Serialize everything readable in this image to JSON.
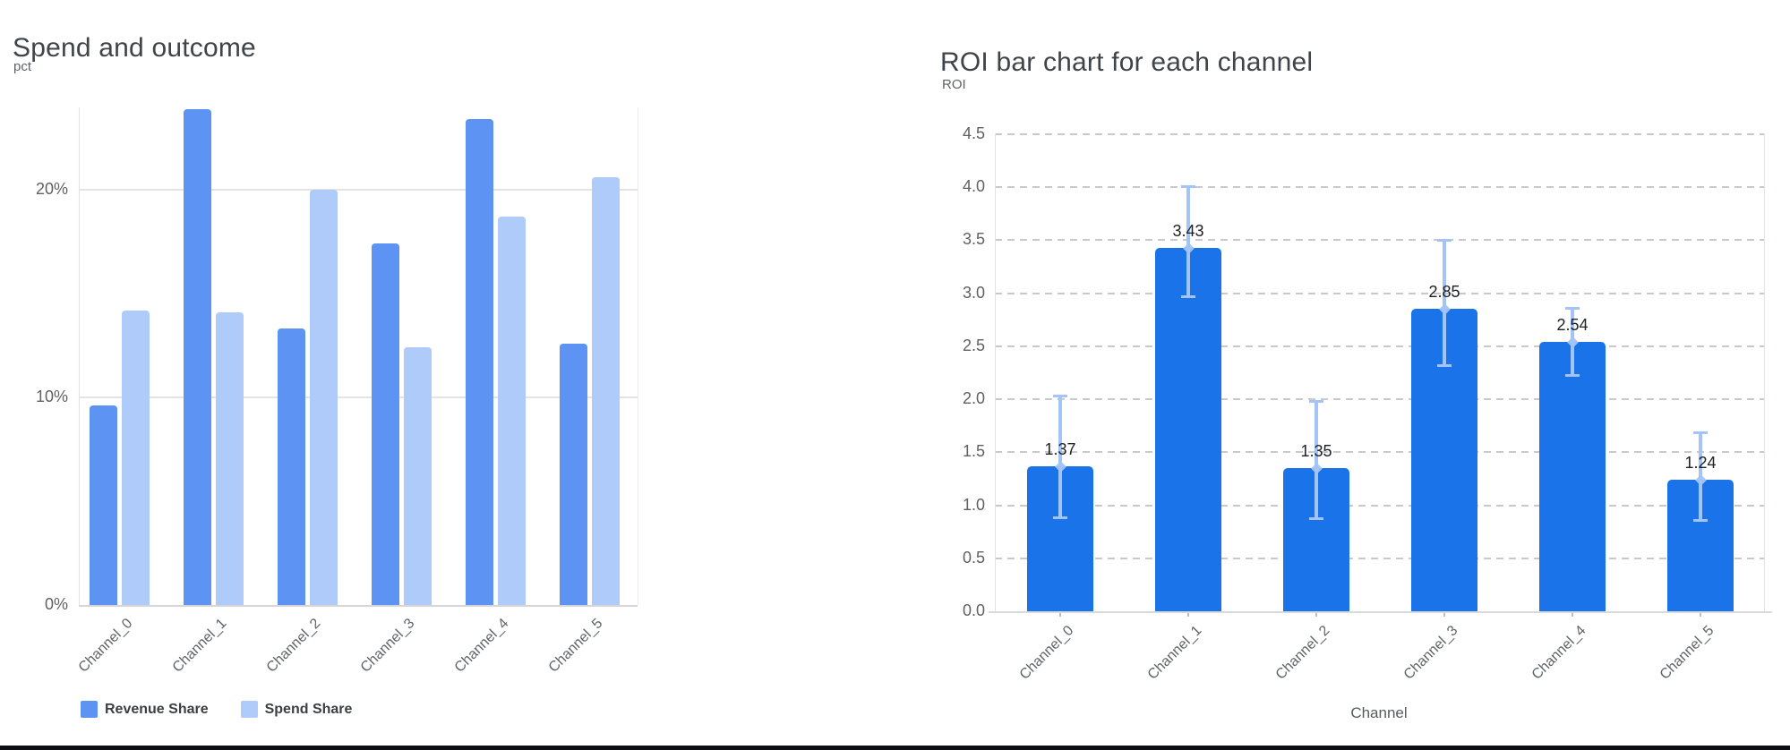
{
  "chart_data": [
    {
      "type": "bar",
      "variant": "grouped",
      "title": "Spend and outcome",
      "y_axis_unit": "pct",
      "categories": [
        "Channel_0",
        "Channel_1",
        "Channel_2",
        "Channel_3",
        "Channel_4",
        "Channel_5"
      ],
      "series": [
        {
          "name": "Revenue Share",
          "color": "#5d93f3",
          "values": [
            9.6,
            23.9,
            13.3,
            17.4,
            23.4,
            12.6
          ]
        },
        {
          "name": "Spend Share",
          "color": "#aecbfa",
          "values": [
            14.2,
            14.1,
            20.0,
            12.4,
            18.7,
            20.6
          ]
        }
      ],
      "value_format": "percent",
      "y_ticks": {
        "values": [
          0,
          10,
          20
        ],
        "labels": [
          "0%",
          "10%",
          "20%"
        ]
      },
      "ylim": [
        0,
        24
      ],
      "grid": "solid",
      "legend_position": "bottom"
    },
    {
      "type": "bar",
      "title": "ROI bar chart for each channel",
      "ylabel": "ROI",
      "xlabel": "Channel",
      "categories": [
        "Channel_0",
        "Channel_1",
        "Channel_2",
        "Channel_3",
        "Channel_4",
        "Channel_5"
      ],
      "values": [
        1.37,
        3.43,
        1.35,
        2.85,
        2.54,
        1.24
      ],
      "bar_labels": [
        "1.37",
        "3.43",
        "1.35",
        "2.85",
        "2.54",
        "1.24"
      ],
      "error_bars": {
        "lower": [
          0.87,
          2.95,
          0.86,
          2.3,
          2.21,
          0.84
        ],
        "upper": [
          2.04,
          4.02,
          1.99,
          3.51,
          2.87,
          1.7
        ]
      },
      "y_ticks": {
        "values": [
          0,
          0.5,
          1,
          1.5,
          2,
          2.5,
          3,
          3.5,
          4,
          4.5
        ],
        "labels": [
          "0.0",
          "0.5",
          "1.0",
          "1.5",
          "2.0",
          "2.5",
          "3.0",
          "3.5",
          "4.0",
          "4.5"
        ]
      },
      "ylim": [
        0,
        4.5
      ],
      "bar_color": "#1a73e8",
      "error_color": "#a4c4f8",
      "grid": "dashed",
      "legend_position": "none"
    }
  ]
}
